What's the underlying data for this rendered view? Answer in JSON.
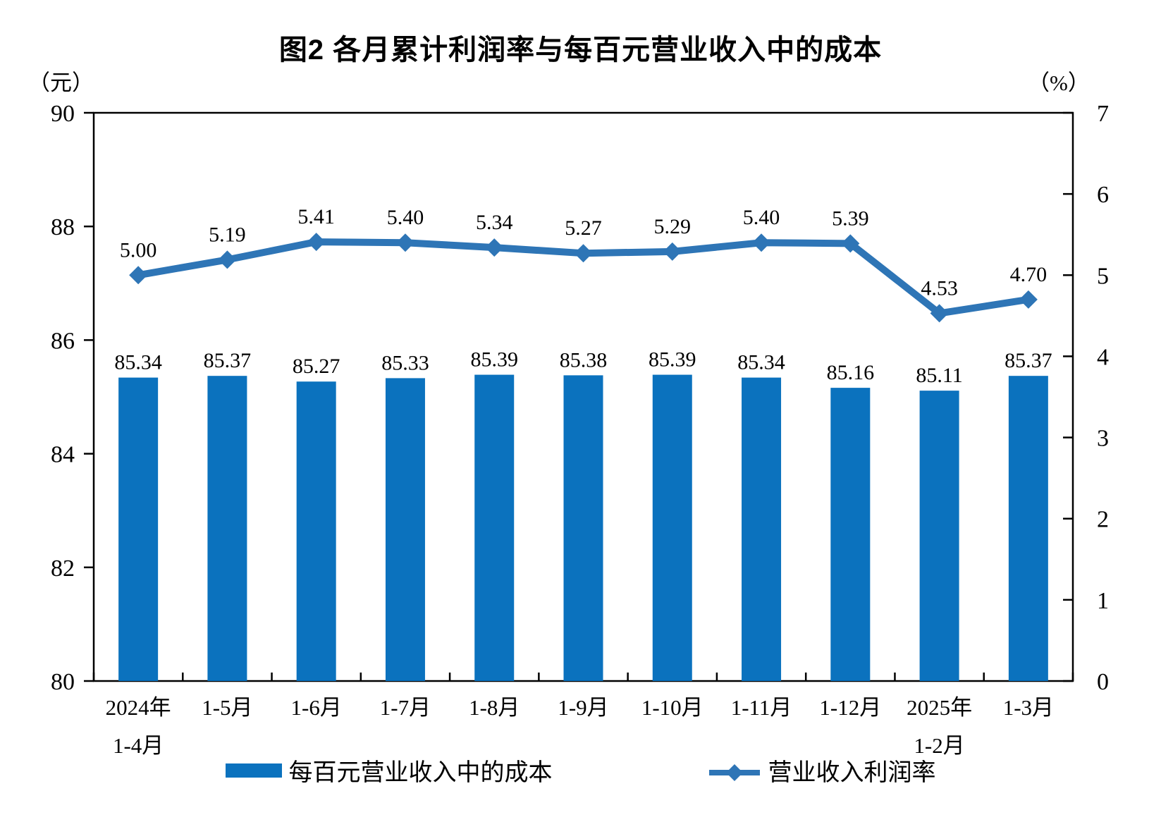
{
  "title": "图2 各月累计利润率与每百元营业收入中的成本",
  "left_axis_unit": "（元）",
  "right_axis_unit": "（%）",
  "legend": {
    "bar_label": "每百元营业收入中的成本",
    "line_label": "营业收入利润率"
  },
  "colors": {
    "bar": "#0B72BE",
    "line": "#2E75B6",
    "axis": "#000000",
    "text": "#000000",
    "background": "#FFFFFF"
  },
  "chart_data": {
    "type": "bar+line",
    "title": "图2 各月累计利润率与每百元营业收入中的成本",
    "categories": [
      [
        "2024年",
        "1-4月"
      ],
      [
        "1-5月"
      ],
      [
        "1-6月"
      ],
      [
        "1-7月"
      ],
      [
        "1-8月"
      ],
      [
        "1-9月"
      ],
      [
        "1-10月"
      ],
      [
        "1-11月"
      ],
      [
        "1-12月"
      ],
      [
        "2025年",
        "1-2月"
      ],
      [
        "1-3月"
      ]
    ],
    "series": [
      {
        "name": "每百元营业收入中的成本",
        "type": "bar",
        "axis": "left",
        "values": [
          85.34,
          85.37,
          85.27,
          85.33,
          85.39,
          85.38,
          85.39,
          85.34,
          85.16,
          85.11,
          85.37
        ]
      },
      {
        "name": "营业收入利润率",
        "type": "line",
        "axis": "right",
        "values": [
          5.0,
          5.19,
          5.41,
          5.4,
          5.34,
          5.27,
          5.29,
          5.4,
          5.39,
          4.53,
          4.7
        ]
      }
    ],
    "left_axis": {
      "label": "（元）",
      "min": 80,
      "max": 90,
      "step": 2
    },
    "right_axis": {
      "label": "（%）",
      "min": 0,
      "max": 7,
      "step": 1
    },
    "grid": false,
    "legend_position": "bottom",
    "data_label_decimals": 2
  }
}
